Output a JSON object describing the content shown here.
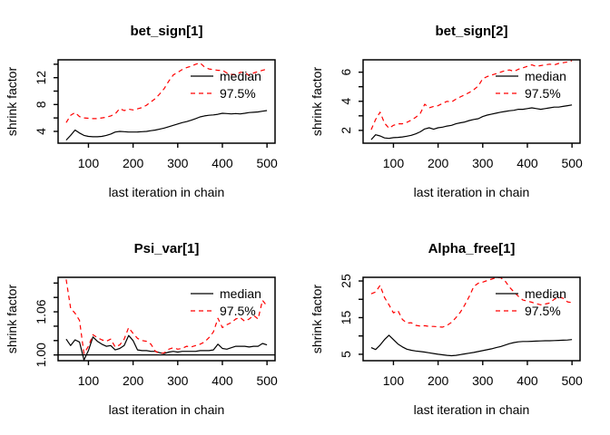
{
  "figure": {
    "background": "#ffffff",
    "axis_color": "#000000",
    "text_color": "#000000",
    "median_color": "#000000",
    "p975_color": "#ff0000",
    "layout": {
      "rows": 2,
      "cols": 2,
      "legend_position": "topright",
      "grid": false
    }
  },
  "chart_data": [
    {
      "type": "line",
      "title": "bet_sign[1]",
      "xlabel": "last iteration in chain",
      "ylabel": "shrink factor",
      "xlim": [
        32,
        518
      ],
      "ylim": [
        2.24,
        14.66
      ],
      "xticks": [
        100,
        200,
        300,
        400,
        500
      ],
      "yticks": [
        4,
        6,
        8,
        10,
        12,
        14
      ],
      "ytick_labels": [
        "4",
        "",
        "8",
        "",
        "12",
        ""
      ],
      "refline": null,
      "x": [
        50,
        60,
        70,
        80,
        90,
        100,
        110,
        120,
        130,
        140,
        150,
        160,
        170,
        180,
        190,
        200,
        210,
        220,
        230,
        240,
        250,
        260,
        270,
        280,
        290,
        300,
        310,
        320,
        330,
        340,
        350,
        360,
        370,
        380,
        390,
        400,
        410,
        420,
        430,
        440,
        450,
        460,
        470,
        480,
        490,
        500
      ],
      "series": [
        {
          "name": "median",
          "color": "#000000",
          "dash": "solid",
          "values": [
            2.7,
            3.4,
            4.2,
            3.75,
            3.4,
            3.25,
            3.2,
            3.2,
            3.25,
            3.4,
            3.6,
            3.9,
            4.0,
            3.95,
            3.9,
            3.9,
            3.92,
            3.95,
            4.0,
            4.1,
            4.2,
            4.35,
            4.5,
            4.7,
            4.9,
            5.1,
            5.3,
            5.45,
            5.65,
            5.9,
            6.15,
            6.3,
            6.4,
            6.45,
            6.55,
            6.7,
            6.65,
            6.6,
            6.65,
            6.6,
            6.7,
            6.8,
            6.85,
            6.9,
            7.0,
            7.1
          ]
        },
        {
          "name": "97.5%",
          "color": "#ff0000",
          "dash": "dashed",
          "values": [
            5.3,
            6.4,
            6.8,
            6.2,
            6.0,
            5.95,
            5.9,
            5.9,
            6.0,
            6.1,
            6.3,
            6.6,
            7.4,
            7.1,
            7.3,
            7.2,
            7.35,
            7.55,
            7.9,
            8.4,
            8.9,
            9.6,
            10.4,
            11.5,
            12.4,
            12.8,
            13.2,
            13.5,
            13.7,
            14.0,
            14.2,
            13.6,
            13.3,
            13.2,
            13.1,
            13.1,
            12.7,
            12.5,
            12.4,
            12.8,
            12.8,
            12.3,
            12.7,
            12.9,
            13.1,
            13.3
          ]
        }
      ]
    },
    {
      "type": "line",
      "title": "bet_sign[2]",
      "xlabel": "last iteration in chain",
      "ylabel": "shrink factor",
      "xlim": [
        32,
        518
      ],
      "ylim": [
        1.12,
        6.85
      ],
      "xticks": [
        100,
        200,
        300,
        400,
        500
      ],
      "yticks": [
        2,
        3,
        4,
        5,
        6
      ],
      "ytick_labels": [
        "2",
        "",
        "4",
        "",
        "6"
      ],
      "refline": null,
      "x": [
        50,
        60,
        70,
        80,
        90,
        100,
        110,
        120,
        130,
        140,
        150,
        160,
        170,
        180,
        190,
        200,
        210,
        220,
        230,
        240,
        250,
        260,
        270,
        280,
        290,
        300,
        310,
        320,
        330,
        340,
        350,
        360,
        370,
        380,
        390,
        400,
        410,
        420,
        430,
        440,
        450,
        460,
        470,
        480,
        490,
        500
      ],
      "series": [
        {
          "name": "median",
          "color": "#000000",
          "dash": "solid",
          "values": [
            1.36,
            1.7,
            1.62,
            1.48,
            1.45,
            1.5,
            1.52,
            1.55,
            1.6,
            1.66,
            1.76,
            1.9,
            2.1,
            2.18,
            2.08,
            2.18,
            2.22,
            2.3,
            2.35,
            2.45,
            2.52,
            2.58,
            2.68,
            2.75,
            2.8,
            2.95,
            3.05,
            3.12,
            3.18,
            3.25,
            3.3,
            3.35,
            3.38,
            3.45,
            3.45,
            3.5,
            3.55,
            3.5,
            3.45,
            3.5,
            3.55,
            3.6,
            3.6,
            3.65,
            3.7,
            3.75
          ]
        },
        {
          "name": "97.5%",
          "color": "#ff0000",
          "dash": "dashed",
          "values": [
            2.05,
            2.75,
            3.25,
            2.5,
            2.15,
            2.35,
            2.45,
            2.45,
            2.55,
            2.7,
            2.9,
            3.15,
            3.8,
            3.55,
            3.65,
            3.7,
            3.85,
            4.0,
            3.95,
            4.15,
            4.3,
            4.45,
            4.6,
            4.8,
            5.05,
            5.55,
            5.7,
            5.8,
            5.9,
            6.0,
            6.1,
            6.15,
            6.05,
            6.2,
            6.3,
            6.4,
            6.5,
            6.4,
            6.45,
            6.5,
            6.55,
            6.5,
            6.6,
            6.65,
            6.7,
            6.78
          ]
        }
      ]
    },
    {
      "type": "line",
      "title": "Psi_var[1]",
      "xlabel": "last iteration in chain",
      "ylabel": "shrink factor",
      "xlim": [
        32,
        518
      ],
      "ylim": [
        0.992,
        1.108
      ],
      "xticks": [
        100,
        200,
        300,
        400,
        500
      ],
      "yticks": [
        1.0,
        1.02,
        1.04,
        1.06,
        1.08,
        1.1
      ],
      "ytick_labels": [
        "1.00",
        "",
        "",
        "1.06",
        "",
        ""
      ],
      "refline": 1.0,
      "x": [
        50,
        60,
        70,
        80,
        90,
        100,
        110,
        120,
        130,
        140,
        150,
        160,
        170,
        180,
        190,
        200,
        210,
        220,
        230,
        240,
        250,
        260,
        270,
        280,
        290,
        300,
        310,
        320,
        330,
        340,
        350,
        360,
        370,
        380,
        390,
        400,
        410,
        420,
        430,
        440,
        450,
        460,
        470,
        480,
        490,
        500
      ],
      "series": [
        {
          "name": "median",
          "color": "#000000",
          "dash": "solid",
          "values": [
            1.022,
            1.013,
            1.021,
            1.018,
            0.993,
            1.006,
            1.025,
            1.019,
            1.015,
            1.012,
            1.013,
            1.007,
            1.009,
            1.013,
            1.027,
            1.02,
            1.007,
            1.006,
            1.006,
            1.005,
            1.005,
            1.003,
            1.002,
            1.004,
            1.005,
            1.004,
            1.005,
            1.005,
            1.005,
            1.005,
            1.006,
            1.006,
            1.006,
            1.007,
            1.015,
            1.009,
            1.008,
            1.01,
            1.012,
            1.012,
            1.012,
            1.011,
            1.012,
            1.012,
            1.016,
            1.014
          ]
        },
        {
          "name": "97.5%",
          "color": "#ff0000",
          "dash": "dashed",
          "values": [
            1.105,
            1.065,
            1.058,
            1.048,
            1.002,
            1.012,
            1.028,
            1.024,
            1.021,
            1.019,
            1.022,
            1.011,
            1.014,
            1.022,
            1.038,
            1.03,
            1.023,
            1.02,
            1.019,
            1.015,
            1.005,
            1.002,
            1.003,
            1.008,
            1.01,
            1.008,
            1.009,
            1.012,
            1.011,
            1.013,
            1.015,
            1.018,
            1.024,
            1.032,
            1.051,
            1.038,
            1.042,
            1.045,
            1.05,
            1.052,
            1.047,
            1.05,
            1.055,
            1.05,
            1.076,
            1.068
          ]
        }
      ]
    },
    {
      "type": "line",
      "title": "Alpha_free[1]",
      "xlabel": "last iteration in chain",
      "ylabel": "shrink factor",
      "xlim": [
        32,
        518
      ],
      "ylim": [
        3.25,
        26.0
      ],
      "xticks": [
        100,
        200,
        300,
        400,
        500
      ],
      "yticks": [
        5,
        10,
        15,
        20,
        25
      ],
      "ytick_labels": [
        "5",
        "",
        "15",
        "",
        "25"
      ],
      "refline": null,
      "x": [
        50,
        60,
        70,
        80,
        90,
        100,
        110,
        120,
        130,
        140,
        150,
        160,
        170,
        180,
        190,
        200,
        210,
        220,
        230,
        240,
        250,
        260,
        270,
        280,
        290,
        300,
        310,
        320,
        330,
        340,
        350,
        360,
        370,
        380,
        390,
        400,
        410,
        420,
        430,
        440,
        450,
        460,
        470,
        480,
        490,
        500
      ],
      "series": [
        {
          "name": "median",
          "color": "#000000",
          "dash": "solid",
          "values": [
            6.8,
            6.3,
            7.5,
            9.0,
            10.2,
            9.0,
            7.8,
            7.0,
            6.4,
            6.1,
            5.9,
            5.75,
            5.6,
            5.4,
            5.2,
            5.0,
            4.85,
            4.7,
            4.6,
            4.7,
            4.9,
            5.1,
            5.3,
            5.5,
            5.75,
            6.0,
            6.25,
            6.5,
            6.8,
            7.1,
            7.5,
            7.9,
            8.2,
            8.4,
            8.5,
            8.5,
            8.55,
            8.6,
            8.65,
            8.7,
            8.7,
            8.75,
            8.8,
            8.85,
            8.9,
            9.0
          ]
        },
        {
          "name": "97.5%",
          "color": "#ff0000",
          "dash": "dashed",
          "values": [
            21.5,
            22.0,
            23.8,
            20.5,
            18.5,
            16.3,
            16.9,
            14.5,
            13.5,
            13.6,
            12.9,
            12.7,
            12.8,
            12.6,
            12.6,
            12.5,
            12.4,
            12.9,
            13.7,
            15.0,
            16.5,
            18.5,
            20.8,
            23.5,
            24.4,
            24.7,
            25.1,
            25.5,
            25.9,
            25.9,
            25.0,
            23.3,
            22.0,
            20.8,
            19.8,
            19.5,
            19.2,
            18.8,
            18.5,
            18.7,
            19.0,
            20.0,
            20.6,
            20.3,
            19.3,
            19.1
          ]
        }
      ]
    }
  ]
}
